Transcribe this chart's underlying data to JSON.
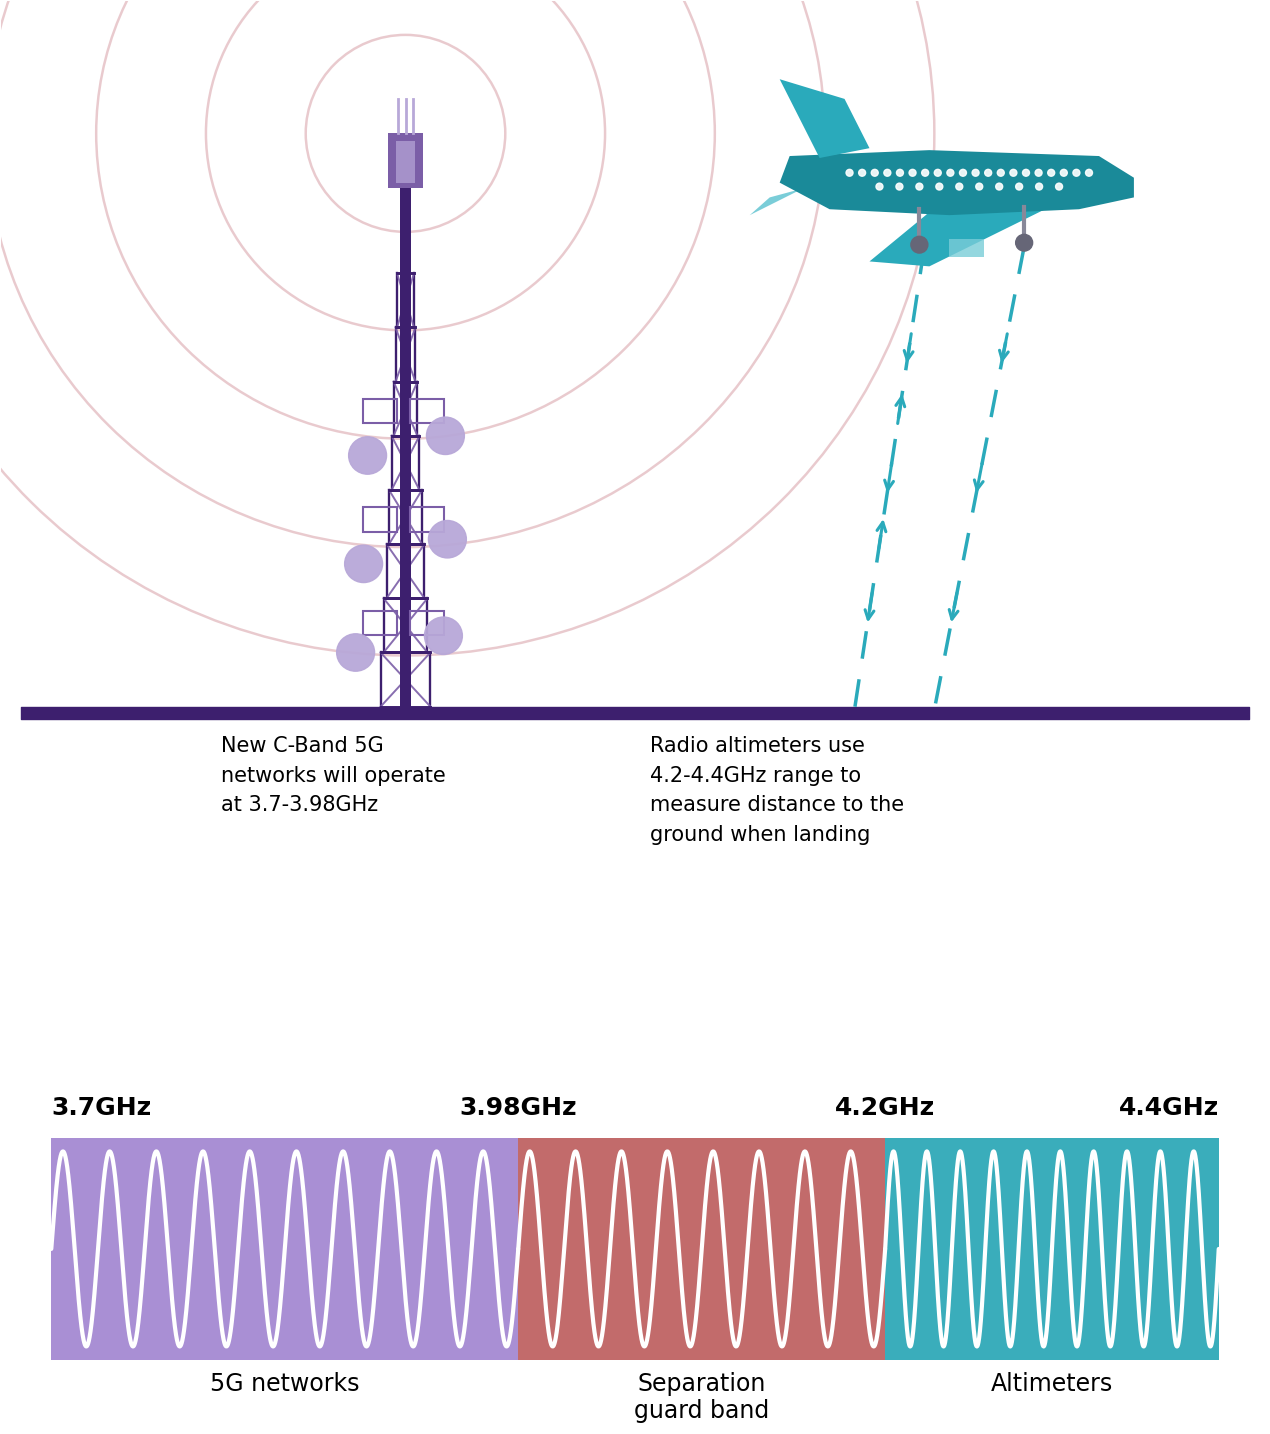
{
  "bg_color": "#ffffff",
  "band_5g_color": "#a98fd4",
  "band_sep_color": "#c26b6b",
  "band_alt_color": "#3aadbb",
  "wave_color": "#ffffff",
  "ground_line_color": "#3d1f6e",
  "tower_dark_color": "#3d1f6e",
  "tower_mid_color": "#7b5ea7",
  "tower_light_color": "#b8a8d8",
  "tower_circle_color": "#b8a8d8",
  "signal_circle_color": "#e8c8cc",
  "plane_dark_color": "#1a8a99",
  "plane_mid_color": "#2aaabb",
  "plane_light_color": "#7acdd8",
  "arrow_color": "#2aaabb",
  "freq_label_37": "3.7GHz",
  "freq_label_398": "3.98GHz",
  "freq_label_42": "4.2GHz",
  "freq_label_44": "4.4GHz",
  "label_5g": "5G networks",
  "label_sep": "Separation\nguard band",
  "label_alt": "Altimeters",
  "text_5g": "New C-Band 5G\nnetworks will operate\nat 3.7-3.98GHz",
  "text_alt": "Radio altimeters use\n4.2-4.4GHz range to\nmeasure distance to the\nground when landing",
  "freq_label_fontsize": 18,
  "band_label_fontsize": 17,
  "desc_fontsize": 15
}
